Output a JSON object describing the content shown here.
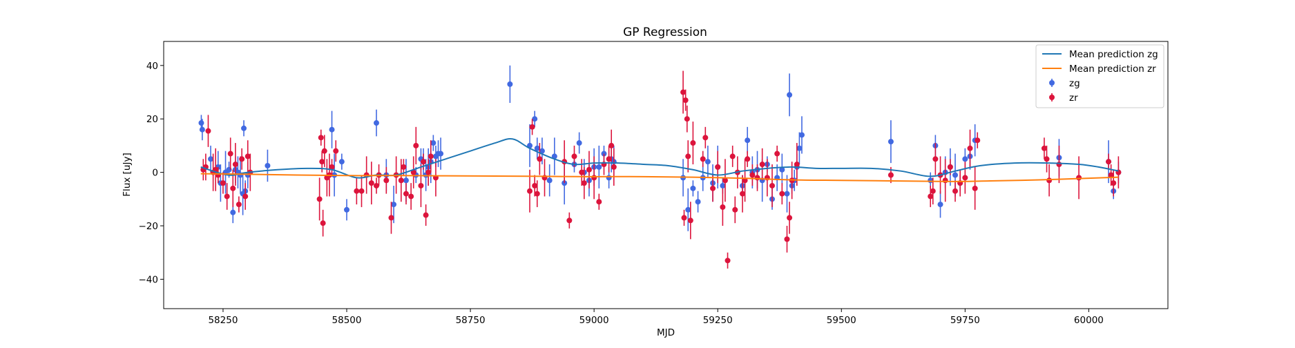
{
  "chart_data": {
    "type": "scatter",
    "title": "GP Regression",
    "xlabel": "MJD",
    "ylabel": "Flux [uJy]",
    "xlim": [
      58130,
      60160
    ],
    "ylim": [
      -51,
      49
    ],
    "xticks": [
      58250,
      58500,
      58750,
      59000,
      59250,
      59500,
      59750,
      60000
    ],
    "yticks": [
      -40,
      -20,
      0,
      20,
      40
    ],
    "grid": false,
    "legend_position": "top-right",
    "colors": {
      "zg": "#4169E1",
      "zr": "#DC143C",
      "mean_zg": "#1f77b4",
      "mean_zr": "#ff7f0e"
    },
    "lines": [
      {
        "name": "Mean prediction zg",
        "color": "#1f77b4",
        "x": [
          58205,
          58260,
          58300,
          58360,
          58420,
          58470,
          58520,
          58560,
          58600,
          58650,
          58700,
          58750,
          58800,
          58835,
          58870,
          58920,
          58960,
          59000,
          59050,
          59100,
          59150,
          59200,
          59250,
          59300,
          59350,
          59400,
          59450,
          59500,
          59560,
          59620,
          59680,
          59730,
          59780,
          59850,
          59920,
          59980,
          60020,
          60060
        ],
        "y": [
          2,
          -1,
          0,
          1,
          1.5,
          1,
          -2,
          -1,
          -1,
          2,
          5,
          8,
          11,
          12.5,
          9,
          5,
          3,
          3.5,
          3.5,
          3,
          2.5,
          1,
          -1,
          0.5,
          1.5,
          2,
          1.5,
          1.5,
          1.5,
          0.5,
          -1.5,
          0.5,
          2.5,
          3.5,
          3.5,
          3,
          2,
          0.5
        ]
      },
      {
        "name": "Mean prediction zr",
        "color": "#ff7f0e",
        "x": [
          58205,
          58300,
          58400,
          58500,
          58600,
          58700,
          58800,
          58900,
          59000,
          59100,
          59200,
          59300,
          59400,
          59500,
          59600,
          59700,
          59750,
          59800,
          59900,
          60000,
          60060
        ],
        "y": [
          -0.5,
          -0.7,
          -1,
          -1.2,
          -1.2,
          -1.3,
          -1.4,
          -1.5,
          -1.6,
          -1.6,
          -1.8,
          -2.2,
          -2.8,
          -3,
          -3.2,
          -3.4,
          -3.4,
          -3.2,
          -2.8,
          -2.2,
          -1.8
        ]
      }
    ],
    "series": [
      {
        "name": "zg",
        "color": "#4169E1",
        "x": [
          58206,
          58208,
          58225,
          58240,
          58245,
          58255,
          58262,
          58270,
          58275,
          58280,
          58285,
          58290,
          58292,
          58295,
          58300,
          58340,
          58470,
          58475,
          58490,
          58500,
          58560,
          58580,
          58595,
          58620,
          58640,
          58650,
          58655,
          58660,
          58665,
          58670,
          58675,
          58680,
          58685,
          58690,
          58830,
          58870,
          58880,
          58885,
          58895,
          58910,
          58920,
          58940,
          58960,
          58970,
          58980,
          58990,
          59000,
          59010,
          59020,
          59030,
          59035,
          59040,
          59180,
          59190,
          59200,
          59210,
          59220,
          59230,
          59240,
          59250,
          59260,
          59300,
          59310,
          59320,
          59330,
          59340,
          59350,
          59360,
          59370,
          59380,
          59390,
          59395,
          59400,
          59405,
          59410,
          59415,
          59420,
          59600,
          59680,
          59690,
          59700,
          59710,
          59720,
          59730,
          59740,
          59750,
          59760,
          59770,
          59940,
          60040,
          60050,
          60060
        ],
        "y": [
          18.5,
          16,
          5,
          2,
          -4,
          0,
          1,
          -15,
          1,
          0,
          -1,
          -8,
          16.5,
          -7,
          -1,
          2.5,
          16,
          -1,
          4,
          -14,
          18.5,
          -1,
          -12,
          -3,
          -1,
          5,
          4,
          -1,
          2,
          4,
          11,
          6,
          7,
          7,
          33,
          10,
          20,
          9,
          8,
          -3,
          6,
          -4,
          3,
          11,
          0,
          -3,
          2,
          2,
          7,
          -2,
          5,
          4,
          -2,
          -14,
          -6,
          -11,
          -2,
          4,
          -4,
          2,
          -5,
          -5,
          12,
          0,
          1,
          -3,
          3,
          -10,
          -2,
          1,
          -8,
          29,
          -5,
          -3,
          2,
          9,
          14,
          11.5,
          -3,
          10,
          -12,
          0,
          2,
          -1,
          -4,
          5,
          6,
          12,
          5.5,
          4,
          -7,
          0
        ]
      },
      {
        "name": "zr",
        "color": "#DC143C",
        "x": [
          58210,
          58215,
          58220,
          58230,
          58235,
          58240,
          58250,
          58258,
          58265,
          58270,
          58275,
          58282,
          58288,
          58295,
          58300,
          58305,
          58445,
          58448,
          58450,
          58452,
          58455,
          58460,
          58465,
          58470,
          58478,
          58520,
          58530,
          58540,
          58550,
          58560,
          58565,
          58580,
          58590,
          58600,
          58610,
          58615,
          58620,
          58630,
          58635,
          58640,
          58650,
          58655,
          58660,
          58665,
          58670,
          58680,
          58870,
          58875,
          58880,
          58885,
          58890,
          58900,
          58940,
          58950,
          58960,
          58975,
          58980,
          58990,
          59000,
          59010,
          59020,
          59030,
          59035,
          59040,
          59180,
          59182,
          59185,
          59188,
          59190,
          59195,
          59200,
          59220,
          59225,
          59240,
          59250,
          59260,
          59265,
          59270,
          59280,
          59285,
          59290,
          59300,
          59305,
          59310,
          59320,
          59330,
          59340,
          59350,
          59360,
          59370,
          59380,
          59390,
          59395,
          59400,
          59410,
          59600,
          59680,
          59685,
          59690,
          59700,
          59710,
          59720,
          59730,
          59740,
          59750,
          59760,
          59770,
          59775,
          59910,
          59915,
          59920,
          59940,
          59980,
          60040,
          60045,
          60050,
          60060
        ],
        "y": [
          1,
          2,
          15.5,
          0,
          1,
          -1,
          -4,
          -9,
          7,
          -6,
          3,
          -12,
          5,
          -9,
          6,
          0,
          -10,
          13,
          4,
          -19,
          8,
          -2,
          -1,
          2,
          8,
          -7,
          -7,
          -1,
          -4,
          -5,
          -1,
          -3,
          -17,
          -1,
          -3,
          2,
          -8,
          -9,
          0,
          10,
          -5,
          4,
          -16,
          0,
          6,
          -2,
          -7,
          17,
          -5,
          -8,
          5,
          -2,
          4,
          -18,
          6,
          0,
          -4,
          1,
          -2,
          -11,
          3,
          5,
          10,
          2,
          30,
          -17,
          27,
          20,
          6,
          -18,
          11,
          5,
          13,
          -6,
          2,
          -13,
          -3,
          -33,
          6,
          -14,
          0,
          -8,
          -3,
          5,
          -1,
          -2,
          3,
          -2,
          -5,
          7,
          -8,
          -25,
          -17,
          -3,
          3,
          -1,
          -9,
          -7,
          5,
          -1,
          -3,
          2,
          -7,
          -4,
          -2,
          9,
          -6,
          12,
          9,
          5,
          -3,
          3,
          -2,
          4,
          -1,
          -4,
          0
        ]
      }
    ],
    "legend": [
      "Mean prediction zg",
      "Mean prediction zr",
      "zg",
      "zr"
    ]
  }
}
